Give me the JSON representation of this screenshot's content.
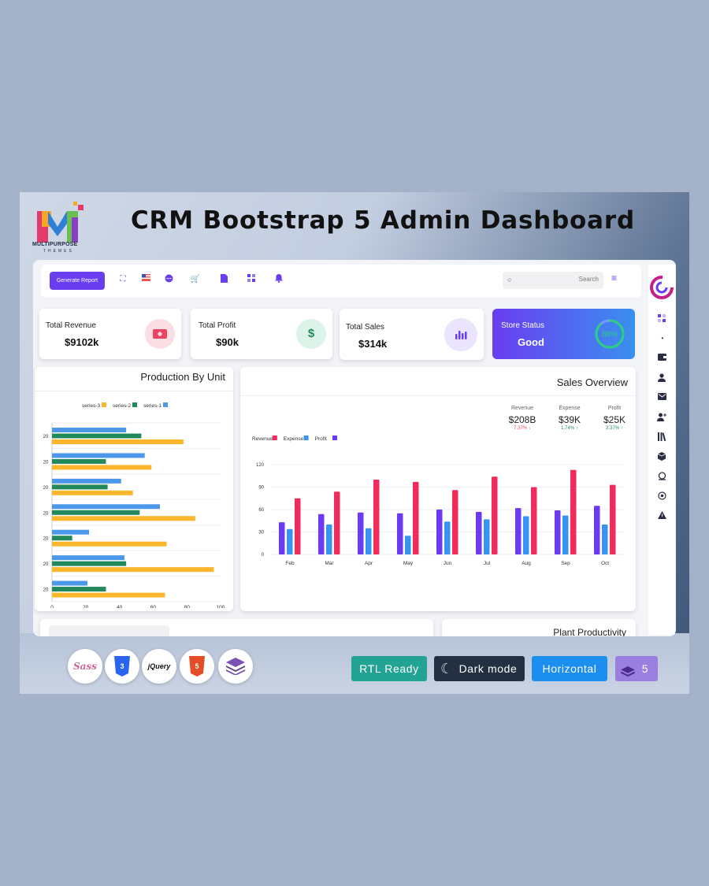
{
  "banner": {
    "headline": "CRM Bootstrap 5 Admin Dashboard",
    "logo_name": "MULTIPURPOSE",
    "logo_sub": "THEMES"
  },
  "topbar": {
    "generate_report": "Generate Report",
    "search_placeholder": "Search",
    "icons": [
      "fullscreen-icon",
      "us-flag-icon",
      "chat-icon",
      "cart-icon",
      "file-icon",
      "columns-icon",
      "bell-icon"
    ]
  },
  "stats": [
    {
      "label": "Total Revenue",
      "value": "$9102k",
      "icon": "money-icon",
      "color": "#e94560"
    },
    {
      "label": "Total Profit",
      "value": "$90k",
      "icon": "dollar-icon",
      "color": "#1f8a5e"
    },
    {
      "label": "Total Sales",
      "value": "$314k",
      "icon": "bar-chart-icon",
      "color": "#6a3df0"
    }
  ],
  "store_status": {
    "label": "Store Status",
    "value": "Good",
    "percent_text": "88%",
    "percent": 88
  },
  "sidebar_icons": [
    "dashboard-icon",
    "pie-chart-icon",
    "wallet-icon",
    "user-icon",
    "mail-icon",
    "add-user-icon",
    "library-icon",
    "box-icon",
    "globe-icon",
    "settings-icon",
    "warning-icon"
  ],
  "production": {
    "title": "Production By Unit"
  },
  "sales": {
    "title": "Sales Overview",
    "kpis": [
      {
        "label": "Revenue",
        "value": "$208B",
        "change": "7.37%",
        "direction": "down",
        "color": "#e94560"
      },
      {
        "label": "Expense",
        "value": "$39K",
        "change": "1.74%",
        "direction": "up",
        "color": "#1f8a5e"
      },
      {
        "label": "Profit",
        "value": "$25K",
        "change": "2.37%",
        "direction": "up",
        "color": "#1f8a5e"
      }
    ]
  },
  "bottom": {
    "plant_title": "Plant Productivity"
  },
  "tech_logos": [
    "Sass",
    "CSS3",
    "jQuery",
    "HTML5",
    "Bootstrap"
  ],
  "badges": [
    {
      "label": "RTL Ready",
      "color": "#23a393"
    },
    {
      "label": "Dark mode",
      "color": "#233042"
    },
    {
      "label": "Horizontal",
      "color": "#1b8ef0"
    },
    {
      "label": "5",
      "color": "#9b7fe0"
    }
  ],
  "chart_data": [
    {
      "type": "bar",
      "orientation": "horizontal",
      "title": "Production By Unit",
      "categories": [
        "20",
        "20",
        "20",
        "20",
        "20",
        "20",
        "20"
      ],
      "series": [
        {
          "name": "series-3",
          "color": "#fbb62c",
          "values": [
            78,
            59,
            48,
            85,
            68,
            96,
            67
          ]
        },
        {
          "name": "series-2",
          "color": "#21895b",
          "values": [
            53,
            32,
            33,
            52,
            12,
            44,
            32
          ]
        },
        {
          "name": "series-1",
          "color": "#4b97ea",
          "values": [
            44,
            55,
            41,
            64,
            22,
            43,
            21
          ]
        }
      ],
      "xlim": [
        0,
        100
      ],
      "xticks": [
        0,
        20,
        40,
        60,
        80,
        100
      ],
      "grid": true,
      "legend": "top"
    },
    {
      "type": "bar",
      "title": "Sales Overview",
      "categories": [
        "Feb",
        "Mar",
        "Apr",
        "May",
        "Jun",
        "Jul",
        "Aug",
        "Sep",
        "Oct"
      ],
      "series": [
        {
          "name": "Revenue",
          "color": "#f12c5c",
          "values": [
            75,
            84,
            100,
            97,
            86,
            104,
            90,
            113,
            93
          ]
        },
        {
          "name": "Expense",
          "color": "#3794f0",
          "values": [
            34,
            40,
            35,
            25,
            44,
            47,
            51,
            52,
            40
          ]
        },
        {
          "name": "Profit",
          "color": "#6c3af0",
          "values": [
            43,
            54,
            56,
            55,
            60,
            57,
            62,
            59,
            65
          ]
        }
      ],
      "ylim": [
        0,
        120
      ],
      "yticks": [
        0,
        30,
        60,
        90,
        120
      ],
      "grid": true,
      "legend": "top-left"
    }
  ]
}
